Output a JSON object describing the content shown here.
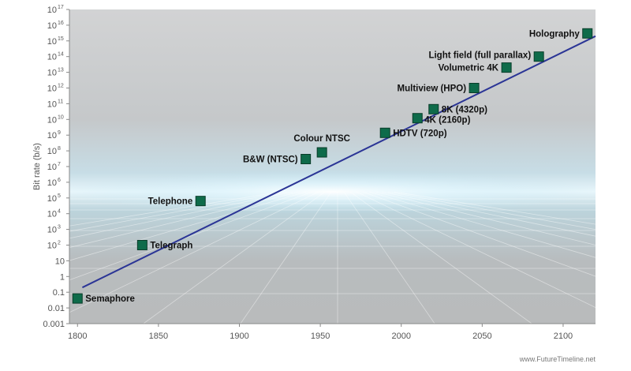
{
  "chart_data": {
    "type": "scatter",
    "title": "",
    "xlabel": "",
    "ylabel": "Bit rate (b/s)",
    "y_scale": "log",
    "xlim": [
      1795,
      2120
    ],
    "ylim": [
      0.001,
      1e+17
    ],
    "x_ticks": [
      1800,
      1850,
      1900,
      1950,
      2000,
      2050,
      2100
    ],
    "x_tick_labels": [
      "1800",
      "1850",
      "1900",
      "1950",
      "2000",
      "2050",
      "2100"
    ],
    "y_tick_labels": [
      {
        "base": "0.001"
      },
      {
        "base": "0.01"
      },
      {
        "base": "0.1"
      },
      {
        "base": "1"
      },
      {
        "base": "10"
      },
      {
        "base": "10",
        "sup": "2"
      },
      {
        "base": "10",
        "sup": "3"
      },
      {
        "base": "10",
        "sup": "4"
      },
      {
        "base": "10",
        "sup": "5"
      },
      {
        "base": "10",
        "sup": "6"
      },
      {
        "base": "10",
        "sup": "7"
      },
      {
        "base": "10",
        "sup": "8"
      },
      {
        "base": "10",
        "sup": "9"
      },
      {
        "base": "10",
        "sup": "10"
      },
      {
        "base": "10",
        "sup": "11"
      },
      {
        "base": "10",
        "sup": "12"
      },
      {
        "base": "10",
        "sup": "13"
      },
      {
        "base": "10",
        "sup": "14"
      },
      {
        "base": "10",
        "sup": "15"
      },
      {
        "base": "10",
        "sup": "16"
      },
      {
        "base": "10",
        "sup": "17"
      }
    ],
    "points": [
      {
        "label": "Semaphore",
        "x": 1800,
        "y": 0.04
      },
      {
        "label": "Telegraph",
        "x": 1840,
        "y": 100
      },
      {
        "label": "Telephone",
        "x": 1876,
        "y": 64000
      },
      {
        "label": "B&W (NTSC)",
        "x": 1941,
        "y": 30000000
      },
      {
        "label": "Colour NTSC",
        "x": 1951,
        "y": 80000000
      },
      {
        "label": "HDTV (720p)",
        "x": 1990,
        "y": 1400000000
      },
      {
        "label": "4K (2160p)",
        "x": 2010,
        "y": 12000000000
      },
      {
        "label": "8K (4320p)",
        "x": 2020,
        "y": 45000000000
      },
      {
        "label": "Multiview (HPO)",
        "x": 2045,
        "y": 1000000000000
      },
      {
        "label": "Volumetric 4K",
        "x": 2065,
        "y": 20000000000000
      },
      {
        "label": "Light field (full parallax)",
        "x": 2085,
        "y": 100000000000000
      },
      {
        "label": "Holography",
        "x": 2115,
        "y": 3000000000000000
      }
    ],
    "trend_line": {
      "x": [
        1803,
        2120
      ],
      "y": [
        0.2,
        2000000000000000.0
      ]
    },
    "grid": false,
    "colors": {
      "marker": "#0e6b4a",
      "line": "#2b3596"
    }
  },
  "credit": "www.FutureTimeline.net"
}
